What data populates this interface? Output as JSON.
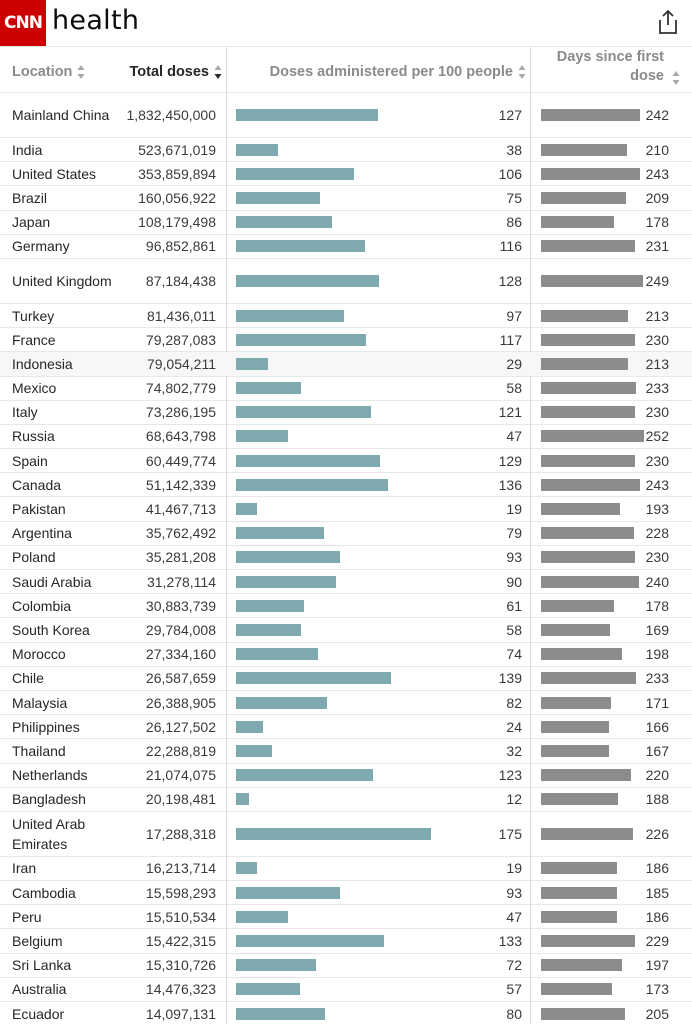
{
  "header": {
    "logo": "CNN",
    "section": "health",
    "share_icon": "share-icon"
  },
  "columns": {
    "location": "Location",
    "total_doses": "Total doses",
    "per100": "Doses administered per 100 people",
    "days": "Days since first dose"
  },
  "colors": {
    "brand": "#cc0000",
    "per100_bar": "#7fabb0",
    "days_bar": "#8c8c8c"
  },
  "rows": [
    {
      "location": "Mainland China",
      "total": "1,832,450,000",
      "per100": 127,
      "days": 242
    },
    {
      "location": "India",
      "total": "523,671,019",
      "per100": 38,
      "days": 210
    },
    {
      "location": "United States",
      "total": "353,859,894",
      "per100": 106,
      "days": 243
    },
    {
      "location": "Brazil",
      "total": "160,056,922",
      "per100": 75,
      "days": 209
    },
    {
      "location": "Japan",
      "total": "108,179,498",
      "per100": 86,
      "days": 178
    },
    {
      "location": "Germany",
      "total": "96,852,861",
      "per100": 116,
      "days": 231
    },
    {
      "location": "United Kingdom",
      "total": "87,184,438",
      "per100": 128,
      "days": 249
    },
    {
      "location": "Turkey",
      "total": "81,436,011",
      "per100": 97,
      "days": 213
    },
    {
      "location": "France",
      "total": "79,287,083",
      "per100": 117,
      "days": 230
    },
    {
      "location": "Indonesia",
      "total": "79,054,211",
      "per100": 29,
      "days": 213
    },
    {
      "location": "Mexico",
      "total": "74,802,779",
      "per100": 58,
      "days": 233
    },
    {
      "location": "Italy",
      "total": "73,286,195",
      "per100": 121,
      "days": 230
    },
    {
      "location": "Russia",
      "total": "68,643,798",
      "per100": 47,
      "days": 252
    },
    {
      "location": "Spain",
      "total": "60,449,774",
      "per100": 129,
      "days": 230
    },
    {
      "location": "Canada",
      "total": "51,142,339",
      "per100": 136,
      "days": 243
    },
    {
      "location": "Pakistan",
      "total": "41,467,713",
      "per100": 19,
      "days": 193
    },
    {
      "location": "Argentina",
      "total": "35,762,492",
      "per100": 79,
      "days": 228
    },
    {
      "location": "Poland",
      "total": "35,281,208",
      "per100": 93,
      "days": 230
    },
    {
      "location": "Saudi Arabia",
      "total": "31,278,114",
      "per100": 90,
      "days": 240
    },
    {
      "location": "Colombia",
      "total": "30,883,739",
      "per100": 61,
      "days": 178
    },
    {
      "location": "South Korea",
      "total": "29,784,008",
      "per100": 58,
      "days": 169
    },
    {
      "location": "Morocco",
      "total": "27,334,160",
      "per100": 74,
      "days": 198
    },
    {
      "location": "Chile",
      "total": "26,587,659",
      "per100": 139,
      "days": 233
    },
    {
      "location": "Malaysia",
      "total": "26,388,905",
      "per100": 82,
      "days": 171
    },
    {
      "location": "Philippines",
      "total": "26,127,502",
      "per100": 24,
      "days": 166
    },
    {
      "location": "Thailand",
      "total": "22,288,819",
      "per100": 32,
      "days": 167
    },
    {
      "location": "Netherlands",
      "total": "21,074,075",
      "per100": 123,
      "days": 220
    },
    {
      "location": "Bangladesh",
      "total": "20,198,481",
      "per100": 12,
      "days": 188
    },
    {
      "location": "United Arab Emirates",
      "total": "17,288,318",
      "per100": 175,
      "days": 226
    },
    {
      "location": "Iran",
      "total": "16,213,714",
      "per100": 19,
      "days": 186
    },
    {
      "location": "Cambodia",
      "total": "15,598,293",
      "per100": 93,
      "days": 185
    },
    {
      "location": "Peru",
      "total": "15,510,534",
      "per100": 47,
      "days": 186
    },
    {
      "location": "Belgium",
      "total": "15,422,315",
      "per100": 133,
      "days": 229
    },
    {
      "location": "Sri Lanka",
      "total": "15,310,726",
      "per100": 72,
      "days": 197
    },
    {
      "location": "Australia",
      "total": "14,476,323",
      "per100": 57,
      "days": 173
    },
    {
      "location": "Ecuador",
      "total": "14,097,131",
      "per100": 80,
      "days": 205
    }
  ]
}
